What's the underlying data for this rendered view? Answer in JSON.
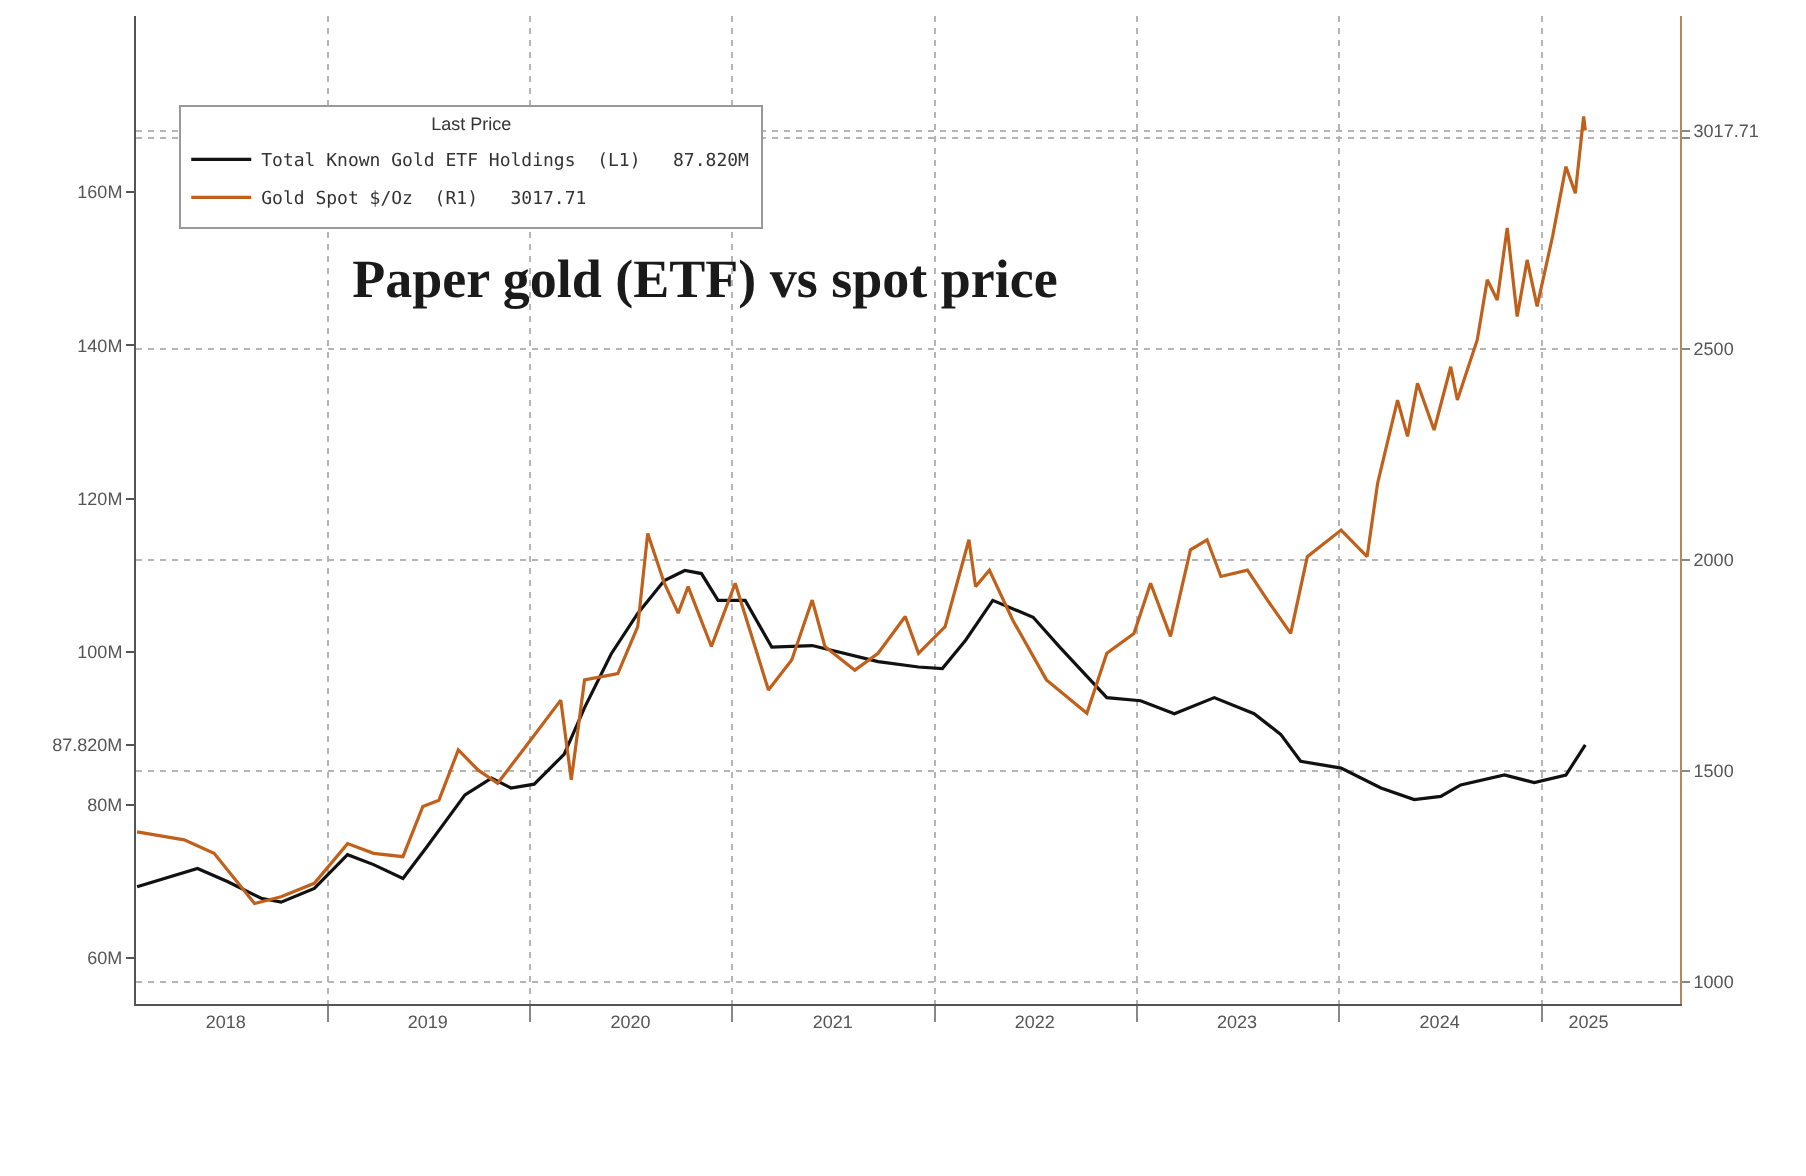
{
  "chart_data": {
    "type": "line",
    "title": "Paper gold (ETF) vs spot price",
    "legend_title": "Last Price",
    "legend": "top left",
    "grid": true,
    "xlim": [
      "2018-01-20",
      "2025-09-08"
    ],
    "xticks": [
      {
        "value": "2018-07-01",
        "label": "2018"
      },
      {
        "value": "2019-07-01",
        "label": "2019"
      },
      {
        "value": "2020-07-01",
        "label": "2020"
      },
      {
        "value": "2021-07-01",
        "label": "2021"
      },
      {
        "value": "2022-07-01",
        "label": "2022"
      },
      {
        "value": "2023-07-01",
        "label": "2023"
      },
      {
        "value": "2024-07-01",
        "label": "2024"
      },
      {
        "value": "2025-03-27",
        "label": "2025"
      },
      {
        "value": "2019-01-01",
        "label": null
      },
      {
        "value": "2020-01-01",
        "label": null
      },
      {
        "value": "2021-01-01",
        "label": null
      },
      {
        "value": "2022-01-01",
        "label": null
      },
      {
        "value": "2023-01-01",
        "label": null
      },
      {
        "value": "2024-01-01",
        "label": null
      },
      {
        "value": "2025-01-01",
        "label": null
      }
    ],
    "ylim": [
      54,
      183
    ],
    "yticks": [
      {
        "value": 60,
        "label": "60M"
      },
      {
        "value": 80,
        "label": "80M"
      },
      {
        "value": 87.82,
        "label": "87.820M"
      },
      {
        "value": 100,
        "label": "100M"
      },
      {
        "value": 120,
        "label": "120M"
      },
      {
        "value": 140,
        "label": "140M"
      },
      {
        "value": 160,
        "label": "160M"
      }
    ],
    "y2lim": [
      948,
      3289
    ],
    "y2ticks": [
      1000,
      1500,
      2000,
      2500,
      {
        "value": 3017.71,
        "label": "3017.71"
      },
      {
        "value": 3000,
        "label": null
      }
    ],
    "series": [
      {
        "name": "Total Known Gold ETF Holdings  (L1)   87.820M",
        "color": "#111111",
        "x": [
          "2018-01-22",
          "2018-05-11",
          "2018-07-04",
          "2018-09-03",
          "2018-10-09",
          "2018-12-08",
          "2019-02-06",
          "2019-03-25",
          "2019-05-17",
          "2019-06-27",
          "2019-09-06",
          "2019-10-24",
          "2019-11-28",
          "2020-01-09",
          "2020-03-03",
          "2020-04-09",
          "2020-05-27",
          "2020-07-14",
          "2020-08-31",
          "2020-10-07",
          "2020-11-06",
          "2020-12-06",
          "2021-01-24",
          "2021-03-13",
          "2021-05-25",
          "2021-09-21",
          "2021-12-03",
          "2022-01-15",
          "2022-02-26",
          "2022-04-16",
          "2022-06-28",
          "2022-08-15",
          "2022-11-08",
          "2023-01-08",
          "2023-03-10",
          "2023-05-21",
          "2023-08-01",
          "2023-09-18",
          "2023-10-24",
          "2024-01-05",
          "2024-03-17",
          "2024-05-16",
          "2024-07-03",
          "2024-08-08",
          "2024-10-26",
          "2024-12-19",
          "2025-02-14",
          "2025-03-21"
        ],
        "values": [
          69.3,
          71.7,
          70,
          67.8,
          67.3,
          69.1,
          73.5,
          72.2,
          70.4,
          74.3,
          81.3,
          83.5,
          82.2,
          82.7,
          86.6,
          92.7,
          99.7,
          105,
          109.3,
          110.6,
          110.2,
          106.7,
          106.7,
          100.6,
          100.8,
          98.7,
          98,
          97.8,
          101.5,
          106.7,
          104.5,
          100.6,
          94,
          93.6,
          91.9,
          94,
          91.9,
          89.2,
          85.7,
          84.8,
          82.2,
          80.7,
          81.1,
          82.6,
          83.9,
          82.9,
          83.9,
          87.82
        ]
      },
      {
        "name": "Gold Spot $/Oz  (R1)   3017.71",
        "color": "#c0601a",
        "axis": "y2",
        "x": [
          "2018-01-22",
          "2018-04-17",
          "2018-06-10",
          "2018-08-22",
          "2018-10-09",
          "2018-12-08",
          "2019-02-06",
          "2019-03-25",
          "2019-05-17",
          "2019-06-22",
          "2019-07-21",
          "2019-08-25",
          "2019-09-30",
          "2019-11-04",
          "2020-01-03",
          "2020-02-26",
          "2020-03-16",
          "2020-04-09",
          "2020-06-08",
          "2020-07-14",
          "2020-08-01",
          "2020-08-31",
          "2020-09-25",
          "2020-10-13",
          "2020-11-24",
          "2021-01-06",
          "2021-03-07",
          "2021-04-18",
          "2021-05-25",
          "2021-06-17",
          "2021-08-10",
          "2021-09-21",
          "2021-11-09",
          "2021-12-03",
          "2022-01-20",
          "2022-03-04",
          "2022-03-16",
          "2022-04-10",
          "2022-05-22",
          "2022-07-22",
          "2022-10-03",
          "2022-11-08",
          "2022-12-27",
          "2023-01-26",
          "2023-03-03",
          "2023-04-08",
          "2023-05-08",
          "2023-06-02",
          "2023-07-20",
          "2023-08-25",
          "2023-10-06",
          "2023-11-05",
          "2024-01-05",
          "2024-02-21",
          "2024-03-11",
          "2024-04-16",
          "2024-05-04",
          "2024-05-22",
          "2024-06-21",
          "2024-07-21",
          "2024-08-02",
          "2024-09-07",
          "2024-09-25",
          "2024-10-13",
          "2024-10-31",
          "2024-11-18",
          "2024-12-06",
          "2024-12-24",
          "2025-01-21",
          "2025-02-14",
          "2025-03-03",
          "2025-03-18",
          "2025-03-21"
        ],
        "values": [
          1356,
          1337,
          1305,
          1186,
          1202,
          1234,
          1328,
          1305,
          1297,
          1416,
          1431,
          1550,
          1502,
          1471,
          1574,
          1668,
          1479,
          1716,
          1731,
          1842,
          2063,
          1945,
          1874,
          1937,
          1795,
          1945,
          1692,
          1763,
          1905,
          1795,
          1739,
          1779,
          1866,
          1779,
          1842,
          2048,
          1937,
          1976,
          1858,
          1716,
          1637,
          1779,
          1826,
          1945,
          1819,
          2024,
          2048,
          1961,
          1976,
          1905,
          1826,
          2008,
          2071,
          2008,
          2182,
          2379,
          2293,
          2419,
          2308,
          2458,
          2379,
          2522,
          2664,
          2616,
          2787,
          2577,
          2711,
          2601,
          2767,
          2932,
          2869,
          3051,
          3017.71
        ]
      }
    ]
  }
}
